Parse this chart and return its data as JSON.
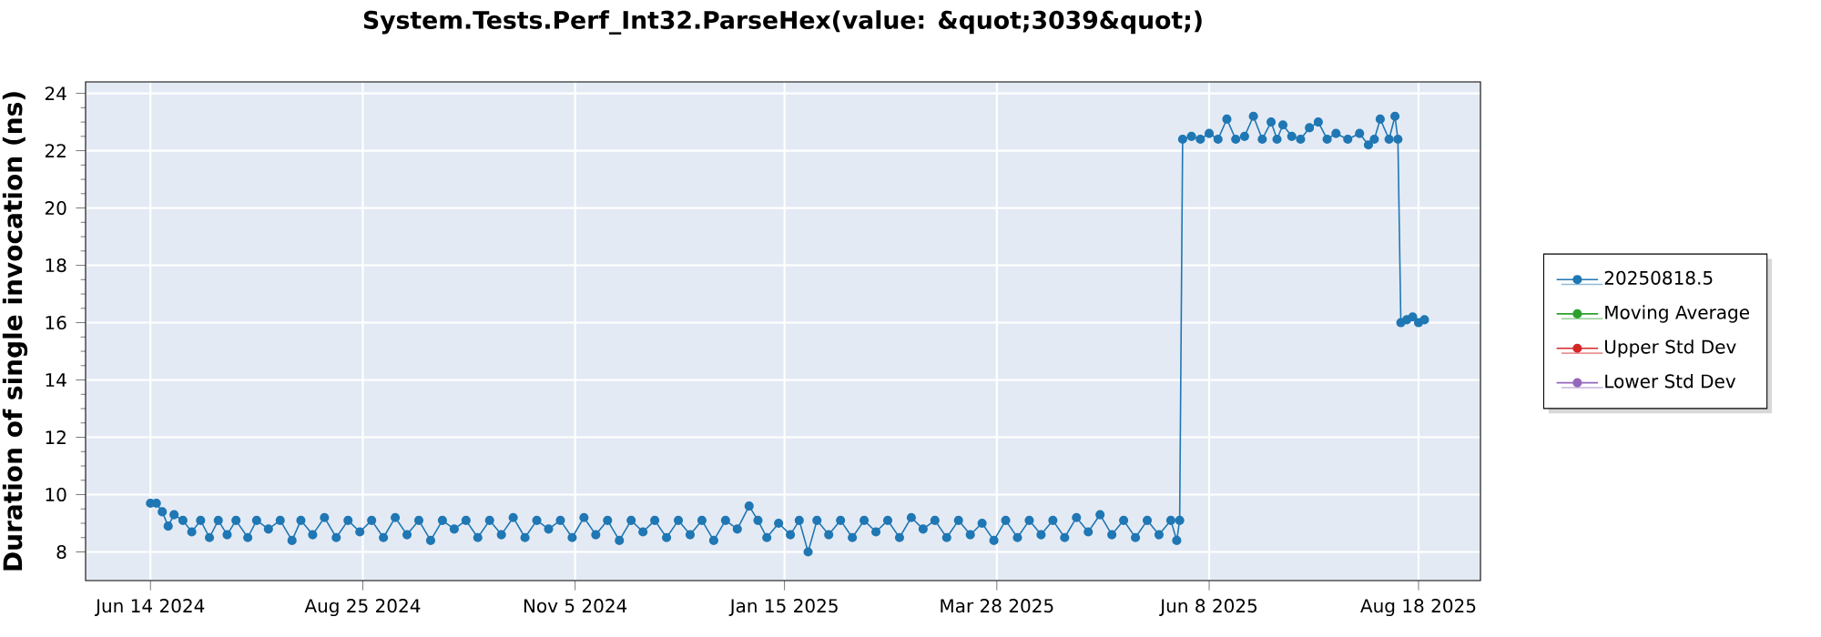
{
  "chart_data": {
    "type": "line",
    "title": "System.Tests.Perf_Int32.ParseHex(value: &quot;3039&quot;)",
    "ylabel": "Duration of single invocation (ns)",
    "xlim": [
      "2024-05-23",
      "2025-09-08"
    ],
    "ylim": [
      7,
      24.4
    ],
    "xticks": [
      {
        "value": "2024-06-14",
        "label": "Jun 14 2024"
      },
      {
        "value": "2024-08-25",
        "label": "Aug 25 2024"
      },
      {
        "value": "2024-11-05",
        "label": "Nov 5 2024"
      },
      {
        "value": "2025-01-15",
        "label": "Jan 15 2025"
      },
      {
        "value": "2025-03-28",
        "label": "Mar 28 2025"
      },
      {
        "value": "2025-06-08",
        "label": "Jun 8 2025"
      },
      {
        "value": "2025-08-18",
        "label": "Aug 18 2025"
      }
    ],
    "yticks": [
      8,
      10,
      12,
      14,
      16,
      18,
      20,
      22,
      24
    ],
    "grid": true,
    "legend": "right",
    "marker": "circle",
    "series": [
      {
        "name": "20250818.5",
        "color": "#1f77b4",
        "x": [
          "2024-06-14",
          "2024-06-16",
          "2024-06-18",
          "2024-06-20",
          "2024-06-22",
          "2024-06-25",
          "2024-06-28",
          "2024-07-01",
          "2024-07-04",
          "2024-07-07",
          "2024-07-10",
          "2024-07-13",
          "2024-07-17",
          "2024-07-20",
          "2024-07-24",
          "2024-07-28",
          "2024-08-01",
          "2024-08-04",
          "2024-08-08",
          "2024-08-12",
          "2024-08-16",
          "2024-08-20",
          "2024-08-24",
          "2024-08-28",
          "2024-09-01",
          "2024-09-05",
          "2024-09-09",
          "2024-09-13",
          "2024-09-17",
          "2024-09-21",
          "2024-09-25",
          "2024-09-29",
          "2024-10-03",
          "2024-10-07",
          "2024-10-11",
          "2024-10-15",
          "2024-10-19",
          "2024-10-23",
          "2024-10-27",
          "2024-10-31",
          "2024-11-04",
          "2024-11-08",
          "2024-11-12",
          "2024-11-16",
          "2024-11-20",
          "2024-11-24",
          "2024-11-28",
          "2024-12-02",
          "2024-12-06",
          "2024-12-10",
          "2024-12-14",
          "2024-12-18",
          "2024-12-22",
          "2024-12-26",
          "2024-12-30",
          "2025-01-03",
          "2025-01-06",
          "2025-01-09",
          "2025-01-13",
          "2025-01-17",
          "2025-01-20",
          "2025-01-23",
          "2025-01-26",
          "2025-01-30",
          "2025-02-03",
          "2025-02-07",
          "2025-02-11",
          "2025-02-15",
          "2025-02-19",
          "2025-02-23",
          "2025-02-27",
          "2025-03-03",
          "2025-03-07",
          "2025-03-11",
          "2025-03-15",
          "2025-03-19",
          "2025-03-23",
          "2025-03-27",
          "2025-03-31",
          "2025-04-04",
          "2025-04-08",
          "2025-04-12",
          "2025-04-16",
          "2025-04-20",
          "2025-04-24",
          "2025-04-28",
          "2025-05-02",
          "2025-05-06",
          "2025-05-10",
          "2025-05-14",
          "2025-05-18",
          "2025-05-22",
          "2025-05-26",
          "2025-05-28",
          "2025-05-29",
          "2025-05-30",
          "2025-06-02",
          "2025-06-05",
          "2025-06-08",
          "2025-06-11",
          "2025-06-14",
          "2025-06-17",
          "2025-06-20",
          "2025-06-23",
          "2025-06-26",
          "2025-06-29",
          "2025-07-01",
          "2025-07-03",
          "2025-07-06",
          "2025-07-09",
          "2025-07-12",
          "2025-07-15",
          "2025-07-18",
          "2025-07-21",
          "2025-07-25",
          "2025-07-29",
          "2025-08-01",
          "2025-08-03",
          "2025-08-05",
          "2025-08-08",
          "2025-08-10",
          "2025-08-11",
          "2025-08-12",
          "2025-08-14",
          "2025-08-16",
          "2025-08-18",
          "2025-08-20"
        ],
        "values": [
          9.7,
          9.7,
          9.4,
          8.9,
          9.3,
          9.1,
          8.7,
          9.1,
          8.5,
          9.1,
          8.6,
          9.1,
          8.5,
          9.1,
          8.8,
          9.1,
          8.4,
          9.1,
          8.6,
          9.2,
          8.5,
          9.1,
          8.7,
          9.1,
          8.5,
          9.2,
          8.6,
          9.1,
          8.4,
          9.1,
          8.8,
          9.1,
          8.5,
          9.1,
          8.6,
          9.2,
          8.5,
          9.1,
          8.8,
          9.1,
          8.5,
          9.2,
          8.6,
          9.1,
          8.4,
          9.1,
          8.7,
          9.1,
          8.5,
          9.1,
          8.6,
          9.1,
          8.4,
          9.1,
          8.8,
          9.6,
          9.1,
          8.5,
          9.0,
          8.6,
          9.1,
          8.0,
          9.1,
          8.6,
          9.1,
          8.5,
          9.1,
          8.7,
          9.1,
          8.5,
          9.2,
          8.8,
          9.1,
          8.5,
          9.1,
          8.6,
          9.0,
          8.4,
          9.1,
          8.5,
          9.1,
          8.6,
          9.1,
          8.5,
          9.2,
          8.7,
          9.3,
          8.6,
          9.1,
          8.5,
          9.1,
          8.6,
          9.1,
          8.4,
          9.1,
          22.4,
          22.5,
          22.4,
          22.6,
          22.4,
          23.1,
          22.4,
          22.5,
          23.2,
          22.4,
          23.0,
          22.4,
          22.9,
          22.5,
          22.4,
          22.8,
          23.0,
          22.4,
          22.6,
          22.4,
          22.6,
          22.2,
          22.4,
          23.1,
          22.4,
          23.2,
          22.4,
          16.0,
          16.1,
          16.2,
          16.0,
          16.1
        ]
      },
      {
        "name": "Moving Average",
        "color": "#2ca02c"
      },
      {
        "name": "Upper Std Dev",
        "color": "#d62728"
      },
      {
        "name": "Lower Std Dev",
        "color": "#9467bd"
      }
    ]
  }
}
